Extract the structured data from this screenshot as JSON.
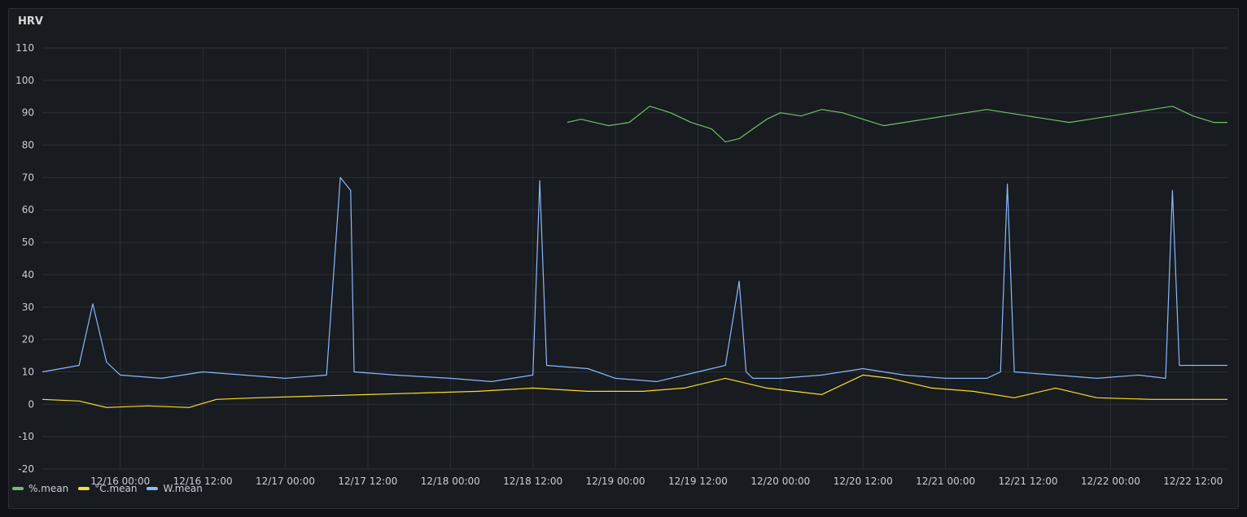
{
  "panel": {
    "title": "HRV"
  },
  "chart_data": {
    "type": "line",
    "title": "HRV",
    "xlabel": "",
    "ylabel": "",
    "ylim": [
      -20,
      110
    ],
    "yticks": [
      110,
      100,
      90,
      80,
      70,
      60,
      50,
      40,
      30,
      20,
      10,
      0,
      -10,
      -20
    ],
    "xrange": [
      "12/15 12:40",
      "12/22 17:00"
    ],
    "xticks": [
      "12/16 00:00",
      "12/16 12:00",
      "12/17 00:00",
      "12/17 12:00",
      "12/18 00:00",
      "12/18 12:00",
      "12/19 00:00",
      "12/19 12:00",
      "12/20 00:00",
      "12/20 12:00",
      "12/21 00:00",
      "12/21 12:00",
      "12/22 00:00",
      "12/22 12:00"
    ],
    "grid": true,
    "legend": "bottom-left",
    "series": [
      {
        "name": "%.mean",
        "color": "#73bf69",
        "x": [
          "12/18 17:00",
          "12/18 19:00",
          "12/18 23:00",
          "12/19 02:00",
          "12/19 05:00",
          "12/19 08:00",
          "12/19 11:00",
          "12/19 14:00",
          "12/19 16:00",
          "12/19 18:00",
          "12/19 20:00",
          "12/19 22:00",
          "12/20 00:00",
          "12/20 03:00",
          "12/20 06:00",
          "12/20 09:00",
          "12/20 12:00",
          "12/20 15:00",
          "12/20 18:00",
          "12/20 21:00",
          "12/21 00:00",
          "12/21 03:00",
          "12/21 06:00",
          "12/21 09:00",
          "12/21 12:00",
          "12/21 15:00",
          "12/21 18:00",
          "12/21 21:00",
          "12/22 00:00",
          "12/22 03:00",
          "12/22 06:00",
          "12/22 09:00",
          "12/22 12:00",
          "12/22 15:00",
          "12/22 17:00"
        ],
        "values": [
          87,
          88,
          86,
          87,
          92,
          90,
          87,
          85,
          81,
          82,
          85,
          88,
          90,
          89,
          91,
          90,
          88,
          86,
          87,
          88,
          89,
          90,
          91,
          90,
          89,
          88,
          87,
          88,
          89,
          90,
          91,
          92,
          89,
          87,
          87
        ]
      },
      {
        "name": "°C.mean",
        "color": "#fade2a",
        "x": [
          "12/15 12:40",
          "12/15 18:00",
          "12/15 22:00",
          "12/16 04:00",
          "12/16 10:00",
          "12/16 14:00",
          "12/16 20:00",
          "12/17 04:00",
          "12/17 12:00",
          "12/17 20:00",
          "12/18 04:00",
          "12/18 12:00",
          "12/18 20:00",
          "12/19 04:00",
          "12/19 10:00",
          "12/19 16:00",
          "12/19 22:00",
          "12/20 06:00",
          "12/20 12:00",
          "12/20 16:00",
          "12/20 22:00",
          "12/21 04:00",
          "12/21 10:00",
          "12/21 16:00",
          "12/21 22:00",
          "12/22 06:00",
          "12/22 12:00",
          "12/22 17:00"
        ],
        "values": [
          1.5,
          1,
          -1,
          -0.5,
          -1,
          1.5,
          2,
          2.5,
          3,
          3.5,
          4,
          5,
          4,
          4,
          5,
          8,
          5,
          3,
          9,
          8,
          5,
          4,
          2,
          5,
          2,
          1.5,
          1.5,
          1.5
        ]
      },
      {
        "name": "W.mean",
        "color": "#8ab8ff",
        "x": [
          "12/15 12:40",
          "12/15 18:00",
          "12/15 20:00",
          "12/15 22:00",
          "12/16 00:00",
          "12/16 06:00",
          "12/16 12:00",
          "12/16 18:00",
          "12/17 00:00",
          "12/17 06:00",
          "12/17 08:00",
          "12/17 09:30",
          "12/17 10:00",
          "12/17 16:00",
          "12/18 00:00",
          "12/18 06:00",
          "12/18 12:00",
          "12/18 13:00",
          "12/18 14:00",
          "12/18 20:00",
          "12/19 00:00",
          "12/19 06:00",
          "12/19 12:00",
          "12/19 16:00",
          "12/19 18:00",
          "12/19 19:00",
          "12/19 20:00",
          "12/20 00:00",
          "12/20 06:00",
          "12/20 12:00",
          "12/20 18:00",
          "12/21 00:00",
          "12/21 06:00",
          "12/21 08:00",
          "12/21 09:00",
          "12/21 10:00",
          "12/21 16:00",
          "12/21 22:00",
          "12/22 04:00",
          "12/22 08:00",
          "12/22 09:00",
          "12/22 10:00",
          "12/22 17:00"
        ],
        "values": [
          10,
          12,
          31,
          13,
          9,
          8,
          10,
          9,
          8,
          9,
          70,
          66,
          10,
          9,
          8,
          7,
          9,
          69,
          12,
          11,
          8,
          7,
          10,
          12,
          38,
          10,
          8,
          8,
          9,
          11,
          9,
          8,
          8,
          10,
          68,
          10,
          9,
          8,
          9,
          8,
          66,
          12,
          12
        ]
      }
    ]
  }
}
